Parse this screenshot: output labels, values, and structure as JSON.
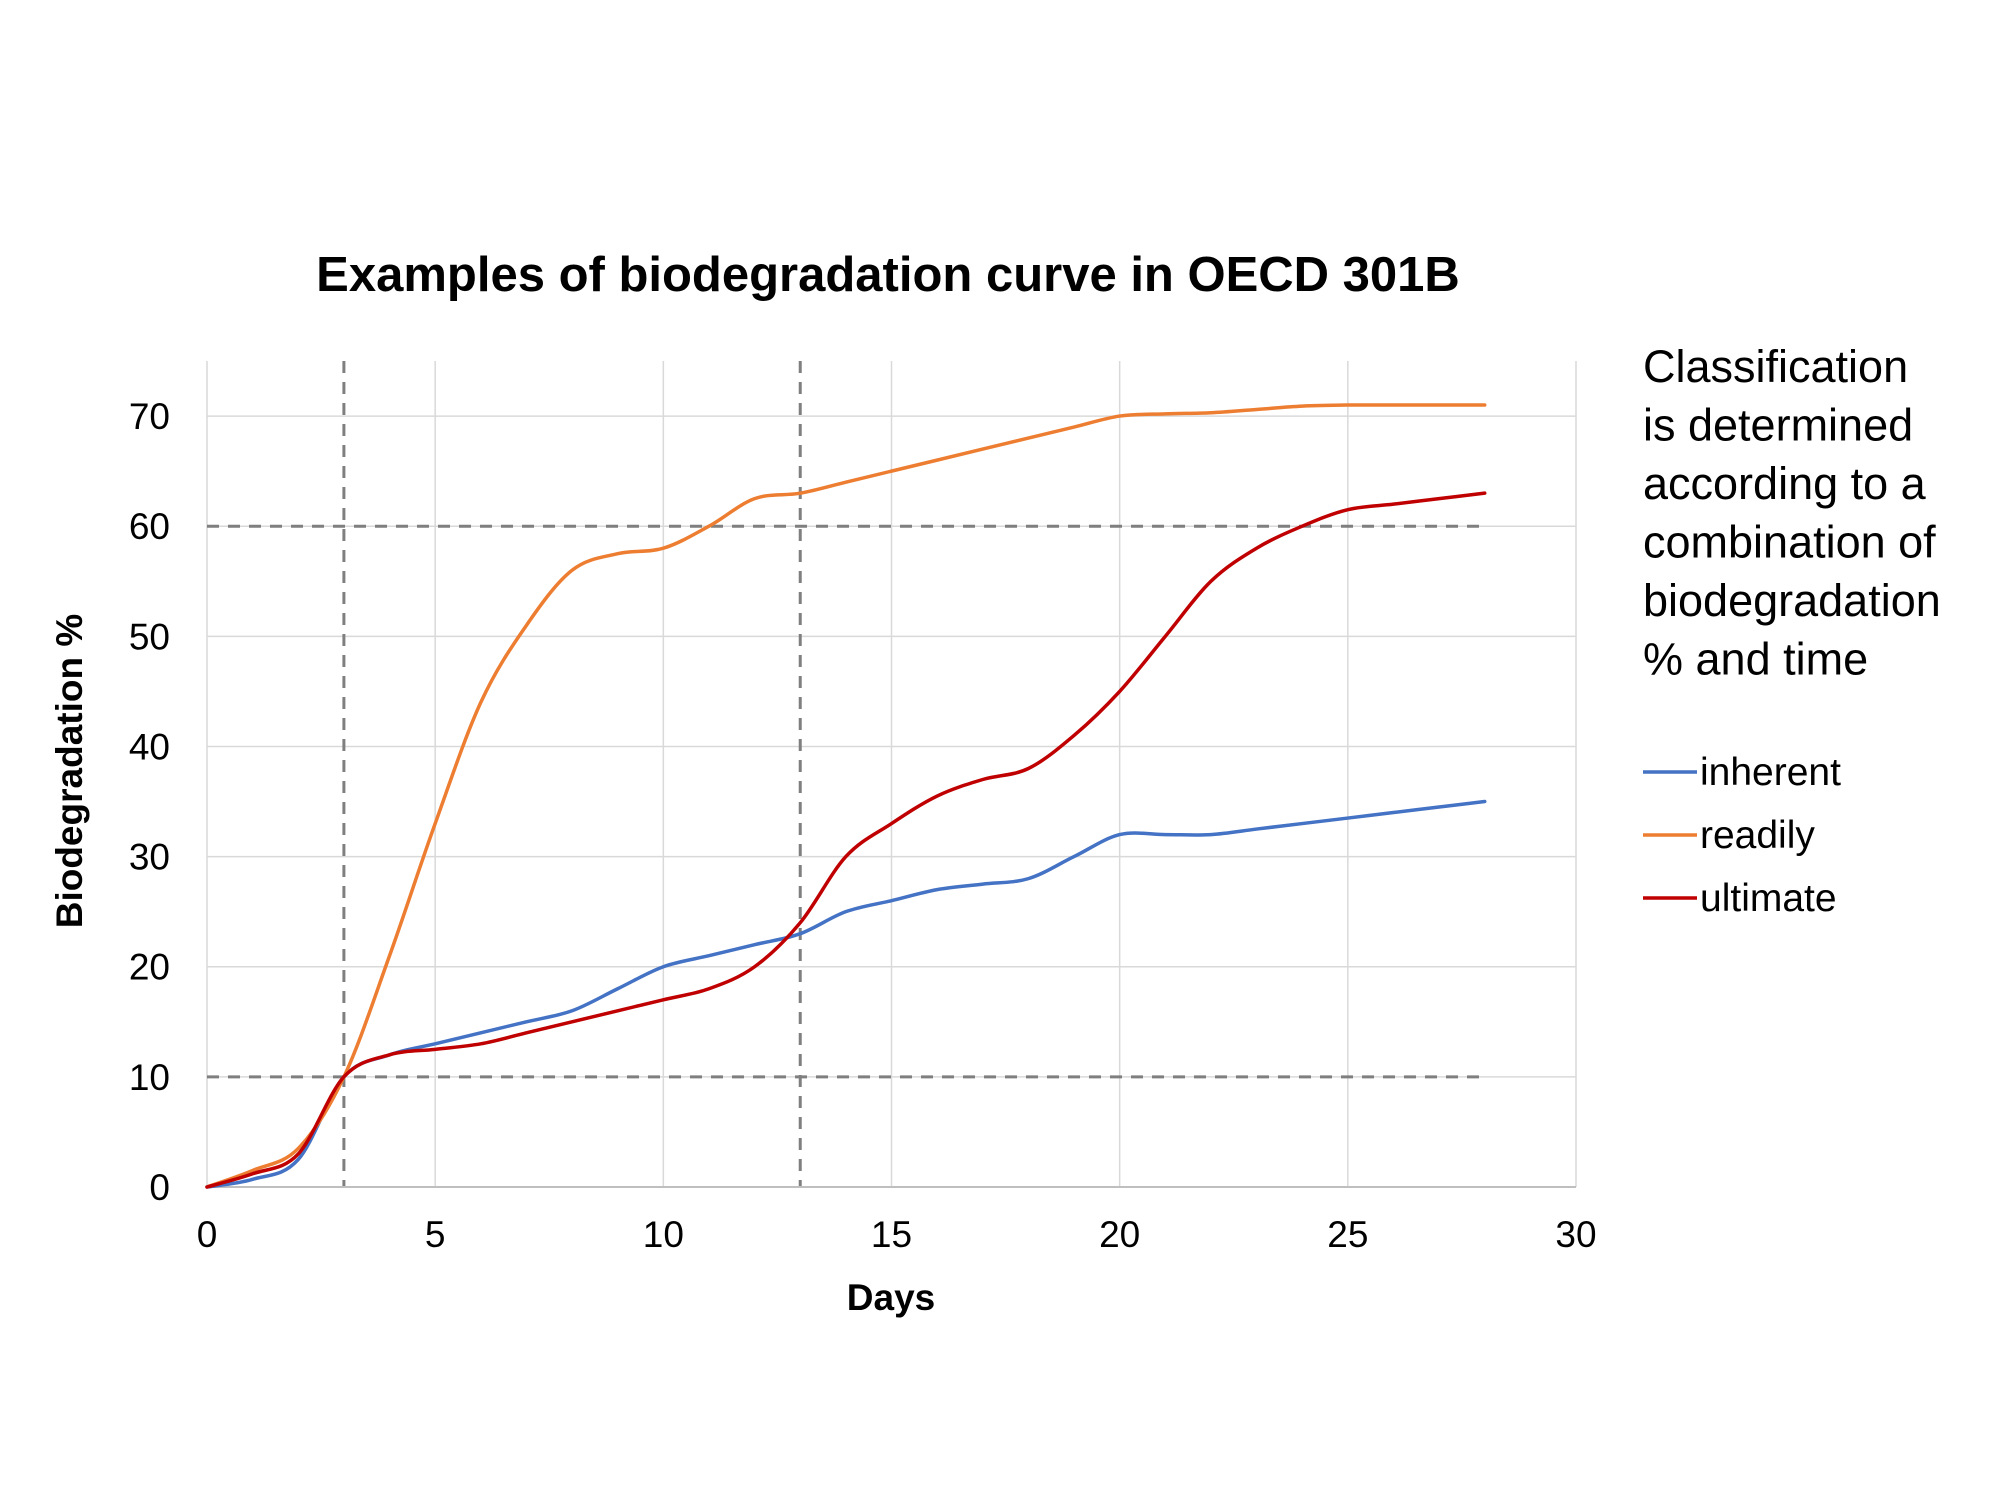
{
  "chart_data": {
    "type": "line",
    "title": "Examples of biodegradation curve in OECD 301B",
    "xlabel": "Days",
    "ylabel": "Biodegradation %",
    "xlim": [
      0,
      30
    ],
    "ylim": [
      0,
      75
    ],
    "x_ticks": [
      "0",
      "5",
      "10",
      "15",
      "20",
      "25",
      "30"
    ],
    "y_ticks": [
      "0",
      "10",
      "20",
      "30",
      "40",
      "50",
      "60",
      "70"
    ],
    "grid": true,
    "legend_position": "right",
    "annotation_lines": [
      "Classification",
      "is determined",
      "according to a",
      "combination of",
      "biodegradation",
      "% and time"
    ],
    "reference_lines": {
      "horizontal": [
        10,
        60
      ],
      "vertical": [
        3,
        13
      ],
      "style": "dashed",
      "color": "#7f7f7f"
    },
    "series": [
      {
        "name": "inherent",
        "color": "#4472c4",
        "x": [
          0,
          1,
          2,
          3,
          4,
          5,
          6,
          7,
          8,
          9,
          10,
          11,
          12,
          13,
          14,
          15,
          16,
          17,
          18,
          19,
          20,
          21,
          22,
          23,
          24,
          25,
          26,
          27,
          28
        ],
        "y": [
          0,
          0.7,
          2.5,
          10,
          12,
          13,
          14,
          15,
          16,
          18,
          20,
          21,
          22,
          23,
          25,
          26,
          27,
          27.5,
          28,
          30,
          32,
          32,
          32,
          32.5,
          33,
          33.5,
          34,
          34.5,
          35
        ]
      },
      {
        "name": "readily",
        "color": "#ed7d31",
        "x": [
          0,
          1,
          2,
          3,
          4,
          5,
          6,
          7,
          8,
          9,
          10,
          11,
          12,
          13,
          14,
          15,
          16,
          17,
          18,
          19,
          20,
          21,
          22,
          23,
          24,
          25,
          26,
          27,
          28
        ],
        "y": [
          0,
          1.5,
          3.5,
          10,
          21,
          33,
          44,
          51,
          56,
          57.5,
          58,
          60,
          62.5,
          63,
          64,
          65,
          66,
          67,
          68,
          69,
          70,
          70.2,
          70.3,
          70.6,
          70.9,
          71,
          71,
          71,
          71
        ]
      },
      {
        "name": "ultimate",
        "color": "#c00000",
        "x": [
          0,
          1,
          2,
          3,
          4,
          5,
          6,
          7,
          8,
          9,
          10,
          11,
          12,
          13,
          14,
          15,
          16,
          17,
          18,
          19,
          20,
          21,
          22,
          23,
          24,
          25,
          26,
          27,
          28
        ],
        "y": [
          0,
          1.2,
          3,
          10,
          12,
          12.5,
          13,
          14,
          15,
          16,
          17,
          18,
          20,
          24,
          30,
          33,
          35.5,
          37,
          38,
          41,
          45,
          50,
          55,
          58,
          60,
          61.5,
          62,
          62.5,
          63
        ]
      }
    ]
  }
}
